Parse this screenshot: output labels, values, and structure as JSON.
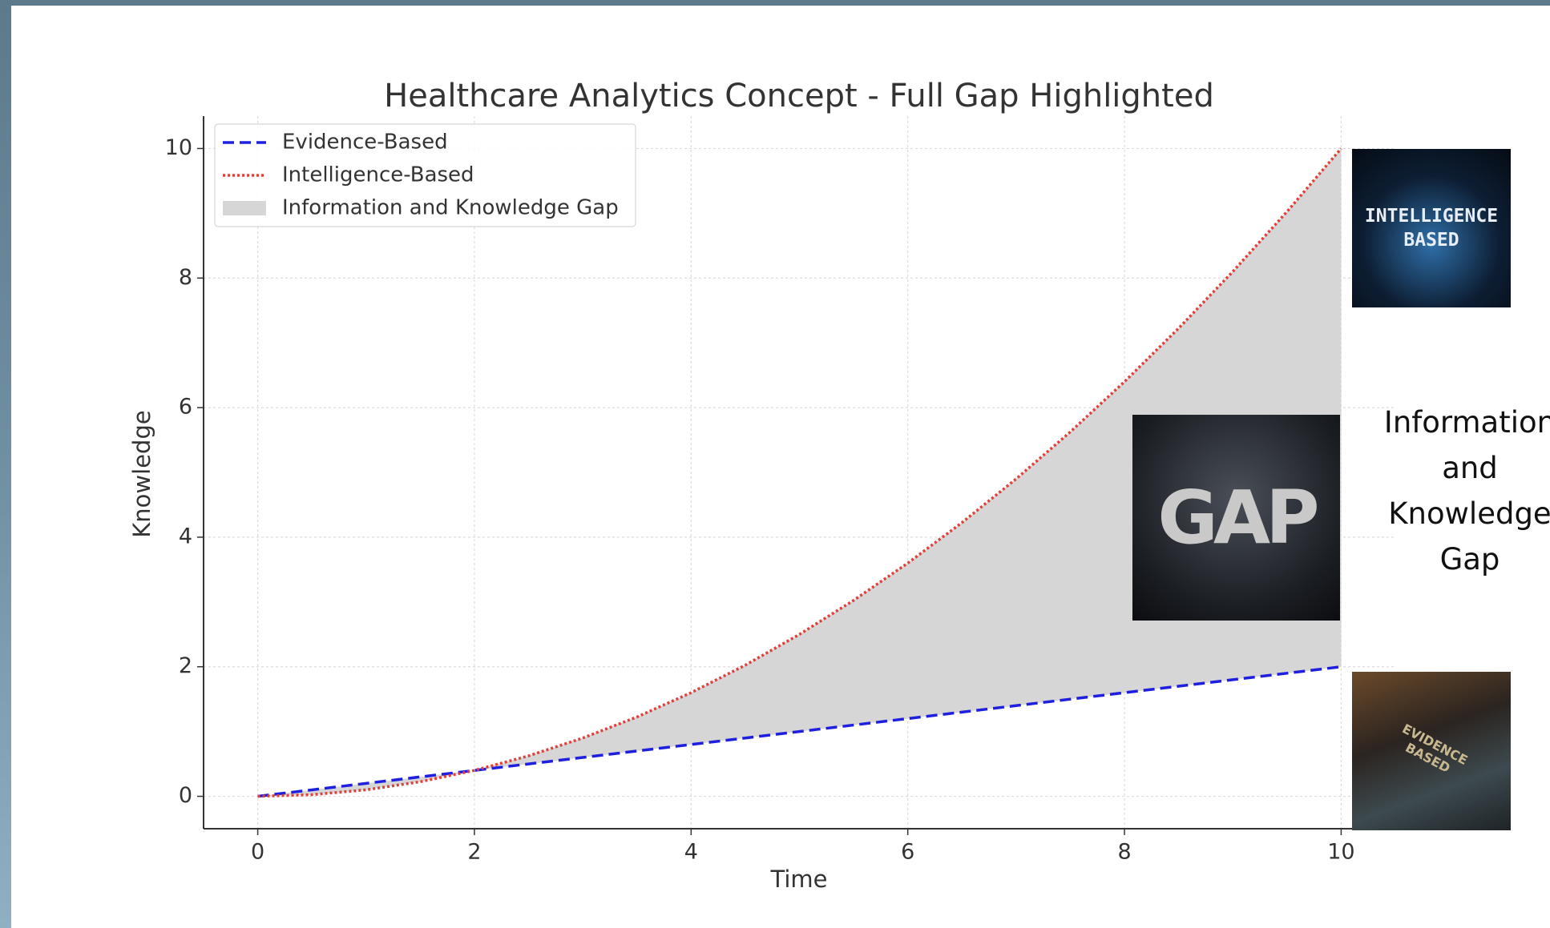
{
  "chart_data": {
    "type": "line",
    "title": "Healthcare Analytics Concept - Full Gap Highlighted",
    "xlabel": "Time",
    "ylabel": "Knowledge",
    "x": [
      0,
      0.5,
      1,
      1.5,
      2,
      2.5,
      3,
      3.5,
      4,
      4.5,
      5,
      5.5,
      6,
      6.5,
      7,
      7.5,
      8,
      8.5,
      9,
      9.5,
      10
    ],
    "series": [
      {
        "name": "Evidence-Based",
        "color": "#1f1fe0",
        "style": "dashed",
        "values": [
          0,
          0.1,
          0.2,
          0.3,
          0.4,
          0.5,
          0.6,
          0.7,
          0.8,
          0.9,
          1.0,
          1.1,
          1.2,
          1.3,
          1.4,
          1.5,
          1.6,
          1.7,
          1.8,
          1.9,
          2.0
        ]
      },
      {
        "name": "Intelligence-Based",
        "color": "#e0403a",
        "style": "dotted",
        "values": [
          0,
          0.025,
          0.1,
          0.225,
          0.4,
          0.625,
          0.9,
          1.225,
          1.6,
          2.025,
          2.5,
          3.025,
          3.6,
          4.225,
          4.9,
          5.625,
          6.4,
          7.225,
          8.1,
          9.025,
          10
        ]
      }
    ],
    "fill_between": {
      "name": "Information and Knowledge Gap",
      "color": "#d6d6d6"
    },
    "xlim": [
      -0.5,
      10.5
    ],
    "ylim": [
      -0.5,
      10.5
    ],
    "xticks": [
      0,
      2,
      4,
      6,
      8,
      10
    ],
    "yticks": [
      0,
      2,
      4,
      6,
      8,
      10
    ],
    "grid": true,
    "legend": "upper left"
  },
  "annotation": "Information and Knowledge Gap",
  "images": [
    "INTELLIGENCE BASED",
    "GAP",
    "EVIDENCE BASED"
  ]
}
